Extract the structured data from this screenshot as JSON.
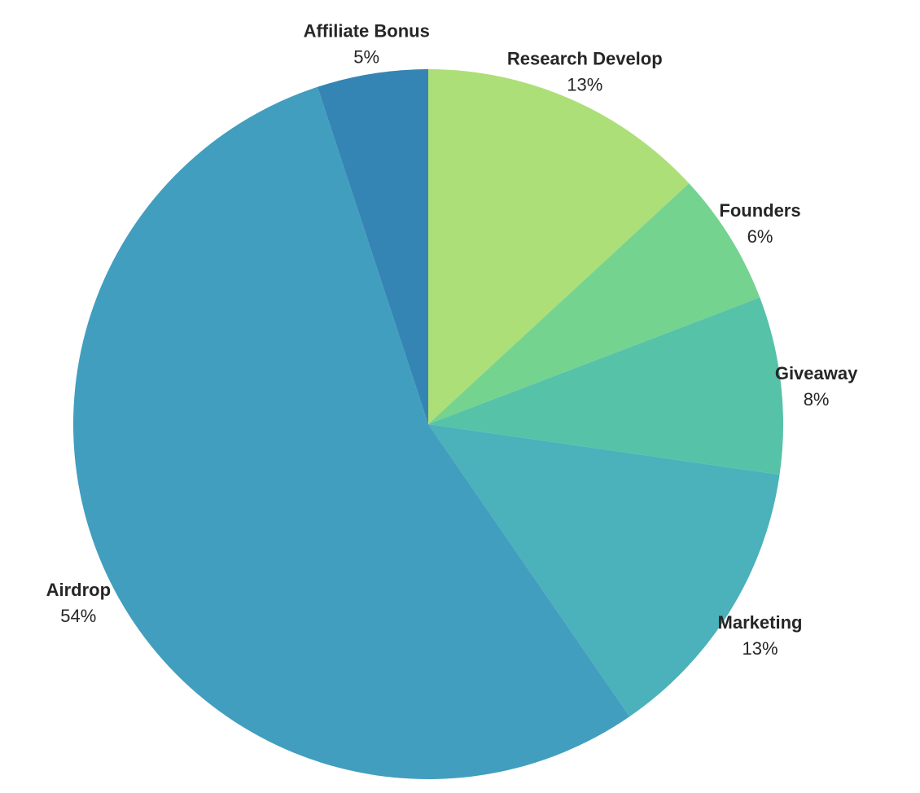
{
  "chart_data": {
    "type": "pie",
    "title": "",
    "start_angle_deg": 90,
    "direction": "clockwise",
    "slices": [
      {
        "label": "Research Develop",
        "value": 13,
        "value_label": "13%",
        "color": "#addf78"
      },
      {
        "label": "Founders",
        "value": 6,
        "value_label": "6%",
        "color": "#74d38f"
      },
      {
        "label": "Giveaway",
        "value": 8,
        "value_label": "8%",
        "color": "#56c2a8"
      },
      {
        "label": "Marketing",
        "value": 13,
        "value_label": "13%",
        "color": "#4bb1bb"
      },
      {
        "label": "Airdrop",
        "value": 54,
        "value_label": "54%",
        "color": "#429ebe"
      },
      {
        "label": "Affiliate Bonus",
        "value": 5,
        "value_label": "5%",
        "color": "#3585b4"
      }
    ]
  }
}
